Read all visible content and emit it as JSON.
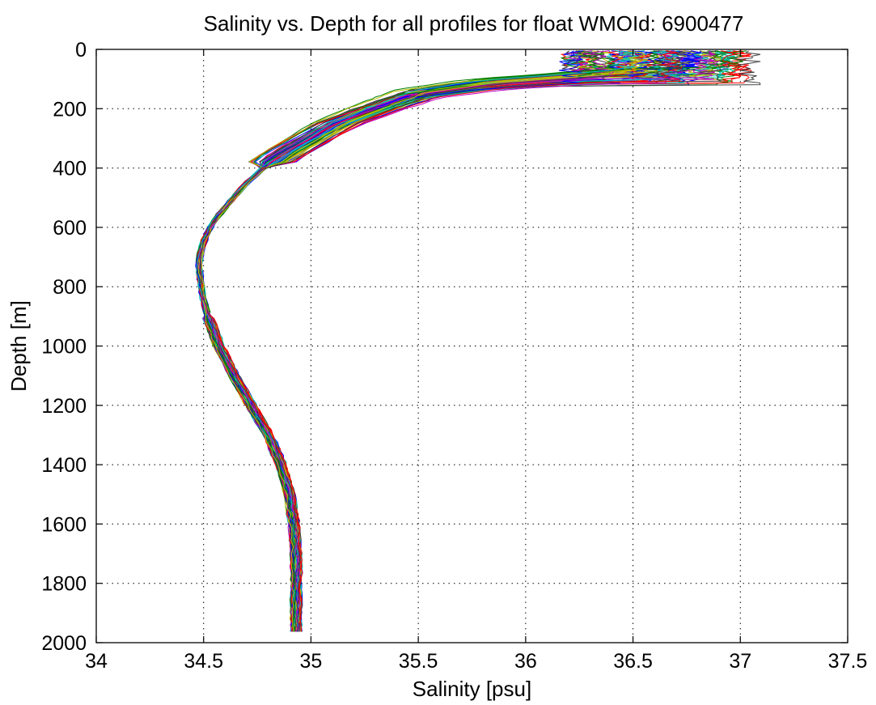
{
  "chart_data": {
    "type": "line",
    "title": "Salinity vs. Depth for all profiles for float WMOId: 6900477",
    "xlabel": "Salinity [psu]",
    "ylabel": "Depth [m]",
    "xlim": [
      34,
      37.5
    ],
    "ylim": [
      0,
      2000
    ],
    "y_reversed": true,
    "grid": true,
    "x_ticks": [
      34,
      34.5,
      35,
      35.5,
      36,
      36.5,
      37,
      37.5
    ],
    "x_tick_labels": [
      "34",
      "34.5",
      "35",
      "35.5",
      "36",
      "36.5",
      "37",
      "37.5"
    ],
    "y_ticks": [
      0,
      200,
      400,
      600,
      800,
      1000,
      1200,
      1400,
      1600,
      1800,
      2000
    ],
    "y_tick_labels": [
      "0",
      "200",
      "400",
      "600",
      "800",
      "1000",
      "1200",
      "1400",
      "1600",
      "1800",
      "2000"
    ],
    "series_colors": [
      "#0000ff",
      "#008000",
      "#ff0000",
      "#00bfbf",
      "#bf00bf",
      "#bfbf00",
      "#404040"
    ],
    "series_count": 84,
    "mean_profile": {
      "depth": [
        5,
        50,
        80,
        100,
        120,
        150,
        200,
        250,
        300,
        350,
        400,
        450,
        500,
        550,
        600,
        650,
        700,
        750,
        800,
        850,
        900,
        1000,
        1100,
        1200,
        1300,
        1400,
        1500,
        1600,
        1700,
        1800,
        1900,
        1980
      ],
      "salinity": [
        36.75,
        36.7,
        36.55,
        36.2,
        35.8,
        35.5,
        35.3,
        35.12,
        35.0,
        34.88,
        34.78,
        34.7,
        34.64,
        34.58,
        34.53,
        34.5,
        34.48,
        34.48,
        34.49,
        34.5,
        34.52,
        34.57,
        34.64,
        34.72,
        34.8,
        34.86,
        34.9,
        34.92,
        34.93,
        34.93,
        34.93,
        34.93
      ]
    }
  }
}
